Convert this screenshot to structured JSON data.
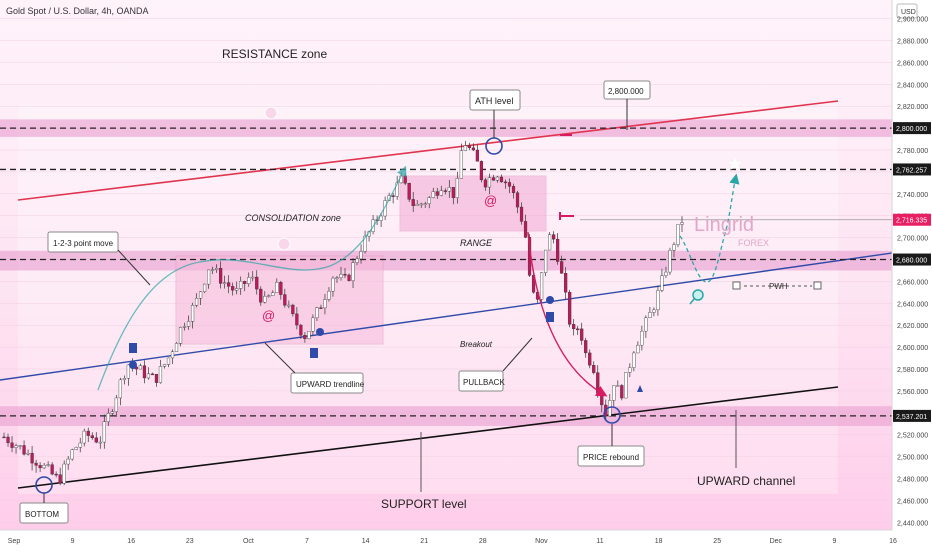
{
  "header": {
    "symbol_title": "Gold Spot / U.S. Dollar, 4h, OANDA",
    "currency": "USD"
  },
  "colors": {
    "bg_top": "#fde6f3",
    "bg_bottom": "#ffd0ec",
    "up": "#ffffff",
    "down": "#c2185b",
    "wick": "#333333",
    "zone": "#e9a3d3",
    "resistance_line": "#e0344f",
    "trend_blue": "#2f4aa8",
    "support_black": "#111111",
    "teal": "#2aa6a6",
    "accent": "#e91e63"
  },
  "chart_data": {
    "type": "candlestick",
    "x_ticks": [
      "Sep",
      "9",
      "16",
      "23",
      "Oct",
      "7",
      "14",
      "21",
      "28",
      "Nov",
      "11",
      "18",
      "25",
      "Dec",
      "9",
      "16"
    ],
    "y_ticks": [
      "2,440.000",
      "2,460.000",
      "2,480.000",
      "2,500.000",
      "2,520.000",
      "2,540.000",
      "2,560.000",
      "2,580.000",
      "2,600.000",
      "2,620.000",
      "2,640.000",
      "2,660.000",
      "2,680.000",
      "2,700.000",
      "2,720.000",
      "2,740.000",
      "2,760.000",
      "2,780.000",
      "2,800.000",
      "2,820.000",
      "2,840.000",
      "2,860.000",
      "2,880.000",
      "2,900.000"
    ],
    "ylim": [
      2433,
      2917
    ],
    "price_path": [
      [
        0,
        2518
      ],
      [
        2,
        2510
      ],
      [
        5,
        2495
      ],
      [
        8,
        2478
      ],
      [
        10,
        2505
      ],
      [
        12,
        2520
      ],
      [
        14,
        2515
      ],
      [
        16,
        2550
      ],
      [
        18,
        2585
      ],
      [
        20,
        2578
      ],
      [
        22,
        2570
      ],
      [
        24,
        2590
      ],
      [
        26,
        2620
      ],
      [
        28,
        2640
      ],
      [
        30,
        2675
      ],
      [
        32,
        2660
      ],
      [
        34,
        2650
      ],
      [
        36,
        2665
      ],
      [
        38,
        2640
      ],
      [
        40,
        2655
      ],
      [
        42,
        2628
      ],
      [
        44,
        2610
      ],
      [
        46,
        2635
      ],
      [
        48,
        2665
      ],
      [
        50,
        2660
      ],
      [
        52,
        2690
      ],
      [
        54,
        2712
      ],
      [
        56,
        2735
      ],
      [
        58,
        2752
      ],
      [
        60,
        2728
      ],
      [
        62,
        2735
      ],
      [
        64,
        2750
      ],
      [
        66,
        2738
      ],
      [
        67,
        2790
      ],
      [
        68,
        2780
      ],
      [
        69,
        2770
      ],
      [
        70,
        2750
      ],
      [
        72,
        2760
      ],
      [
        74,
        2746
      ],
      [
        76,
        2710
      ],
      [
        77,
        2650
      ],
      [
        78,
        2640
      ],
      [
        79,
        2690
      ],
      [
        80,
        2705
      ],
      [
        81,
        2680
      ],
      [
        82,
        2645
      ],
      [
        83,
        2610
      ],
      [
        84,
        2620
      ],
      [
        85,
        2592
      ],
      [
        86,
        2585
      ],
      [
        87,
        2555
      ],
      [
        88,
        2538
      ],
      [
        89,
        2570
      ],
      [
        90,
        2555
      ],
      [
        91,
        2575
      ],
      [
        92,
        2600
      ],
      [
        93,
        2612
      ],
      [
        94,
        2625
      ],
      [
        95,
        2640
      ],
      [
        96,
        2658
      ],
      [
        97,
        2680
      ],
      [
        98,
        2700
      ],
      [
        99,
        2716
      ]
    ],
    "bands": [
      {
        "label": "ATH zone",
        "y0": 2792,
        "y1": 2808
      },
      {
        "label": "support zone",
        "y0": 2528,
        "y1": 2546
      },
      {
        "label": "mid zone",
        "y0": 2670,
        "y1": 2688
      }
    ],
    "levels": [
      {
        "value": "2,800.000",
        "y": 2800,
        "dashed": true
      },
      {
        "value": "2,762.257",
        "y": 2762.257,
        "dashed": true
      },
      {
        "value": "2,716.335",
        "y": 2716.335,
        "dashed": false
      },
      {
        "value": "2,680.000",
        "y": 2680,
        "dashed": true
      },
      {
        "value": "2,537.201",
        "y": 2537.201,
        "dashed": true
      }
    ]
  },
  "annotations": {
    "resistance_zone": "RESISTANCE zone",
    "consolidation_zone": "CONSOLIDATION zone",
    "ath_level": "ATH level",
    "ath_price": "2,800.000",
    "range": "RANGE",
    "point_move": "1-2-3 point move",
    "breakout": "Breakout",
    "pullback": "PULLBACK",
    "upward_trendline": "UPWARD trendline",
    "price_rebound": "PRICE rebound",
    "upward_channel": "UPWARD channel",
    "support_level": "SUPPORT level",
    "bottom": "BOTTOM",
    "pwh": "PWH",
    "brand_main": "Lingrid",
    "brand_sub": "FOREX"
  }
}
